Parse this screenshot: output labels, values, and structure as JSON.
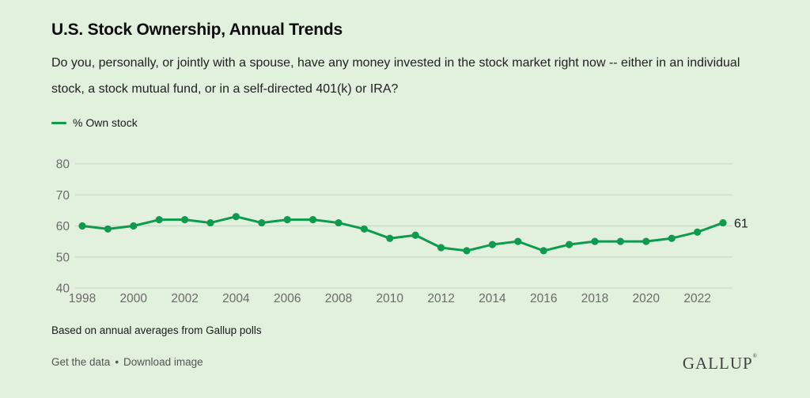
{
  "title": "U.S. Stock Ownership, Annual Trends",
  "question": "Do you, personally, or jointly with a spouse, have any money invested in the stock market right now -- either in an individual stock, a stock mutual fund, or in a self-directed 401(k) or IRA?",
  "legend": {
    "label": "% Own stock"
  },
  "colors": {
    "background": "#e2f0de",
    "line": "#0f9b4e",
    "grid": "#ccd9ca",
    "axis_text": "#6b6b6b",
    "end_label_text": "#1b1b1b"
  },
  "chart_data": {
    "type": "line",
    "title": "U.S. Stock Ownership, Annual Trends",
    "x": [
      1998,
      1999,
      2000,
      2001,
      2002,
      2003,
      2004,
      2005,
      2006,
      2007,
      2008,
      2009,
      2010,
      2011,
      2012,
      2013,
      2014,
      2015,
      2016,
      2017,
      2018,
      2019,
      2020,
      2021,
      2022,
      2023
    ],
    "series": [
      {
        "name": "% Own stock",
        "values": [
          60,
          59,
          60,
          62,
          62,
          61,
          63,
          61,
          62,
          62,
          61,
          59,
          56,
          57,
          53,
          52,
          54,
          55,
          52,
          54,
          55,
          55,
          55,
          56,
          58,
          61
        ]
      }
    ],
    "xlabel": "",
    "ylabel": "",
    "ylim": [
      40,
      80
    ],
    "yticks": [
      80,
      70,
      60,
      50,
      40
    ],
    "xticks": [
      1998,
      2000,
      2002,
      2004,
      2006,
      2008,
      2010,
      2012,
      2014,
      2016,
      2018,
      2020,
      2022
    ],
    "grid": true,
    "legend_position": "top-left",
    "end_label": "61"
  },
  "footer": {
    "note": "Based on annual averages from Gallup polls",
    "link_get_data": "Get the data",
    "separator": "•",
    "link_download": "Download image",
    "logo": "GALLUP",
    "logo_mark": "®"
  }
}
